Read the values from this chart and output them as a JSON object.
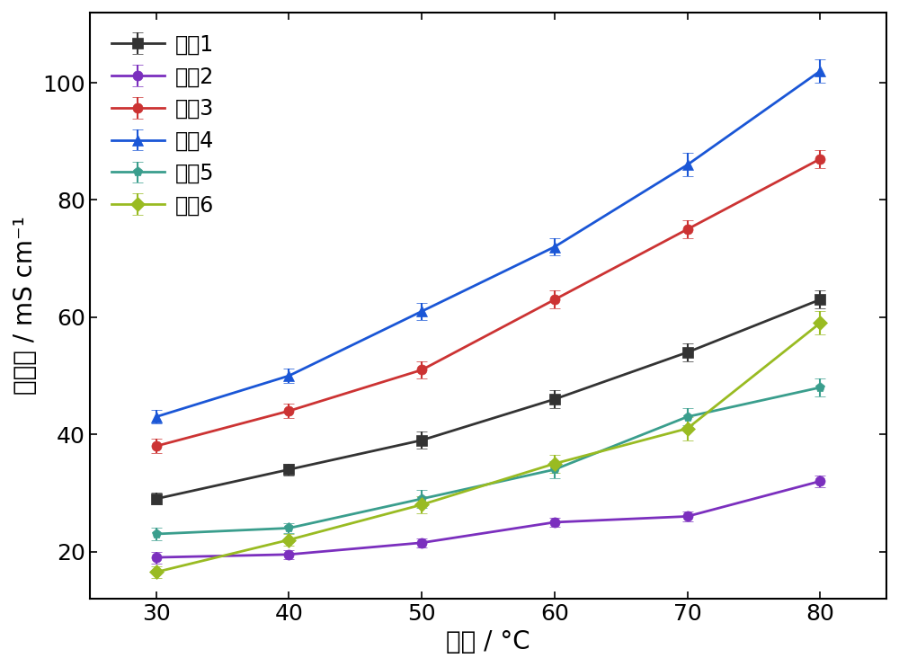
{
  "x": [
    30,
    40,
    50,
    60,
    70,
    80
  ],
  "series": [
    {
      "label": "实例1",
      "color": "#333333",
      "marker": "s",
      "y": [
        29,
        34,
        39,
        46,
        54,
        63
      ],
      "yerr": [
        1.0,
        1.0,
        1.5,
        1.5,
        1.5,
        1.5
      ]
    },
    {
      "label": "实例2",
      "color": "#7B2FBE",
      "marker": "o",
      "y": [
        19,
        19.5,
        21.5,
        25,
        26,
        32
      ],
      "yerr": [
        1.0,
        0.8,
        0.8,
        0.8,
        0.8,
        1.0
      ]
    },
    {
      "label": "实例3",
      "color": "#CC3333",
      "marker": "o",
      "y": [
        38,
        44,
        51,
        63,
        75,
        87
      ],
      "yerr": [
        1.2,
        1.2,
        1.5,
        1.5,
        1.5,
        1.5
      ]
    },
    {
      "label": "实例4",
      "color": "#1a56d6",
      "marker": "^",
      "y": [
        43,
        50,
        61,
        72,
        86,
        102
      ],
      "yerr": [
        1.2,
        1.2,
        1.5,
        1.5,
        2.0,
        2.0
      ]
    },
    {
      "label": "实例5",
      "color": "#3A9E8D",
      "marker": "p",
      "y": [
        23,
        24,
        29,
        34,
        43,
        48
      ],
      "yerr": [
        1.0,
        0.8,
        1.5,
        1.5,
        1.5,
        1.5
      ]
    },
    {
      "label": "实例6",
      "color": "#99BB22",
      "marker": "D",
      "y": [
        16.5,
        22,
        28,
        35,
        41,
        59
      ],
      "yerr": [
        1.0,
        1.0,
        1.5,
        1.5,
        2.0,
        2.0
      ]
    }
  ],
  "xlabel": "温度 / °C",
  "ylabel": "电导率 / mS cm⁻¹",
  "xlim": [
    25,
    85
  ],
  "ylim": [
    12,
    112
  ],
  "yticks": [
    20,
    40,
    60,
    80,
    100
  ],
  "xticks": [
    30,
    40,
    50,
    60,
    70,
    80
  ],
  "label_fontsize": 20,
  "tick_fontsize": 18,
  "legend_fontsize": 17,
  "linewidth": 2.0,
  "markersize": 8,
  "capsize": 4,
  "background_color": "#ffffff"
}
